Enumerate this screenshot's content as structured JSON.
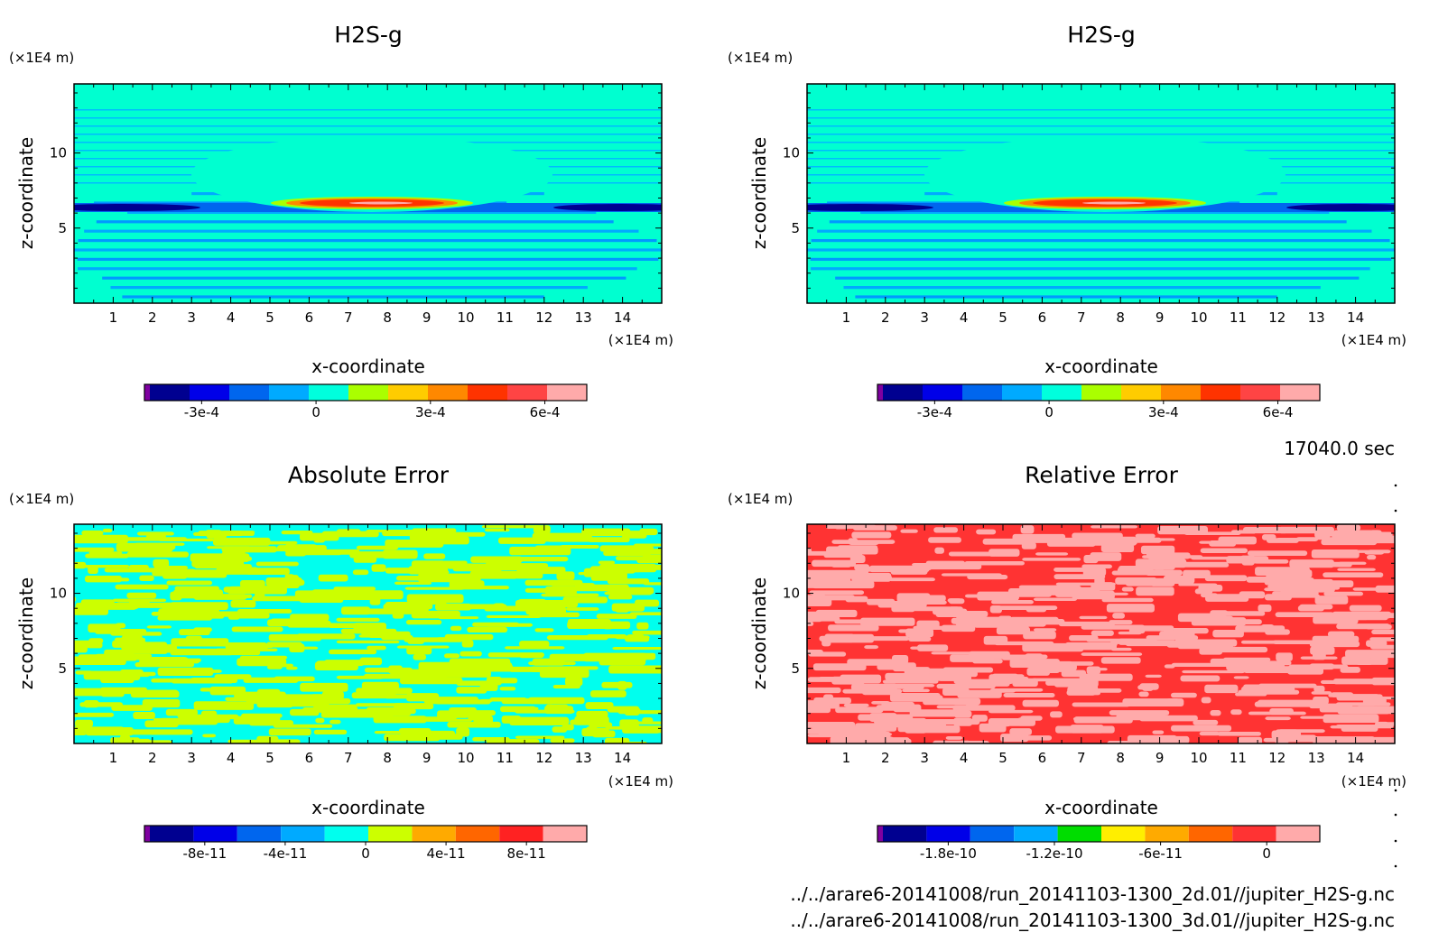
{
  "chart_data": [
    {
      "type": "heatmap",
      "title": "H2S-g",
      "xlabel": "x-coordinate",
      "ylabel": "z-coordinate",
      "x_unit": "(×1E4 m)",
      "y_unit": "(×1E4 m)",
      "xlim": [
        0,
        15
      ],
      "ylim": [
        0,
        14.6
      ],
      "xticks": [
        "1",
        "2",
        "3",
        "4",
        "5",
        "6",
        "7",
        "8",
        "9",
        "10",
        "11",
        "12",
        "13",
        "14"
      ],
      "yticks": [
        "5",
        "10"
      ],
      "colorbar": {
        "colors": [
          "#7f00a0",
          "#000090",
          "#0000e8",
          "#0066ee",
          "#00aaff",
          "#00ffdd",
          "#aaff00",
          "#ffcc00",
          "#ff8800",
          "#ff3300",
          "#ff4444",
          "#ffaaaa"
        ],
        "tick_labels": [
          "-3e-4",
          "0",
          "3e-4",
          "6e-4"
        ],
        "tick_values": [
          -0.0003,
          0,
          0.0003,
          0.0006
        ],
        "range": [
          -0.00045,
          0.00071
        ]
      }
    },
    {
      "type": "heatmap",
      "title": "H2S-g",
      "xlabel": "x-coordinate",
      "ylabel": "z-coordinate",
      "x_unit": "(×1E4 m)",
      "y_unit": "(×1E4 m)",
      "xlim": [
        0,
        15
      ],
      "ylim": [
        0,
        14.6
      ],
      "xticks": [
        "1",
        "2",
        "3",
        "4",
        "5",
        "6",
        "7",
        "8",
        "9",
        "10",
        "11",
        "12",
        "13",
        "14"
      ],
      "yticks": [
        "5",
        "10"
      ],
      "colorbar": {
        "colors": [
          "#7f00a0",
          "#000090",
          "#0000e8",
          "#0066ee",
          "#00aaff",
          "#00ffdd",
          "#aaff00",
          "#ffcc00",
          "#ff8800",
          "#ff3300",
          "#ff4444",
          "#ffaaaa"
        ],
        "tick_labels": [
          "-3e-4",
          "0",
          "3e-4",
          "6e-4"
        ],
        "tick_values": [
          -0.0003,
          0,
          0.0003,
          0.0006
        ],
        "range": [
          -0.00045,
          0.00071
        ]
      }
    },
    {
      "type": "heatmap",
      "title": "Absolute Error",
      "xlabel": "x-coordinate",
      "ylabel": "z-coordinate",
      "x_unit": "(×1E4 m)",
      "y_unit": "(×1E4 m)",
      "xlim": [
        0,
        15
      ],
      "ylim": [
        0,
        14.6
      ],
      "xticks": [
        "1",
        "2",
        "3",
        "4",
        "5",
        "6",
        "7",
        "8",
        "9",
        "10",
        "11",
        "12",
        "13",
        "14"
      ],
      "yticks": [
        "5",
        "10"
      ],
      "colorbar": {
        "colors": [
          "#7f00a0",
          "#000090",
          "#0000e8",
          "#0066ee",
          "#00aaff",
          "#00ffee",
          "#ccff00",
          "#ffaa00",
          "#ff6600",
          "#ff2222",
          "#ffaaaa"
        ],
        "tick_labels": [
          "-8e-11",
          "-4e-11",
          "0",
          "4e-11",
          "8e-11"
        ],
        "tick_values": [
          -8e-11,
          -4e-11,
          0,
          4e-11,
          8e-11
        ],
        "range": [
          -1.1e-10,
          1.1e-10
        ]
      }
    },
    {
      "type": "heatmap",
      "title": "Relative Error",
      "xlabel": "x-coordinate",
      "ylabel": "z-coordinate",
      "x_unit": "(×1E4 m)",
      "y_unit": "(×1E4 m)",
      "xlim": [
        0,
        15
      ],
      "ylim": [
        0,
        14.6
      ],
      "xticks": [
        "1",
        "2",
        "3",
        "4",
        "5",
        "6",
        "7",
        "8",
        "9",
        "10",
        "11",
        "12",
        "13",
        "14"
      ],
      "yticks": [
        "5",
        "10"
      ],
      "colorbar": {
        "colors": [
          "#7f00a0",
          "#000090",
          "#0000e8",
          "#0066ee",
          "#00aaff",
          "#00dd00",
          "#ffee00",
          "#ffaa00",
          "#ff6600",
          "#ff3333",
          "#ffaaaa"
        ],
        "tick_labels": [
          "-1.8e-10",
          "-1.2e-10",
          "-6e-11",
          "0"
        ],
        "tick_values": [
          -1.8e-10,
          -1.2e-10,
          -6e-11,
          0
        ],
        "range": [
          -2.2e-10,
          3e-11
        ]
      }
    }
  ],
  "time_label": "17040.0 sec",
  "files": [
    "../../arare6-20141008/run_20141103-1300_2d.01//jupiter_H2S-g.nc",
    "../../arare6-20141008/run_20141103-1300_3d.01//jupiter_H2S-g.nc"
  ]
}
